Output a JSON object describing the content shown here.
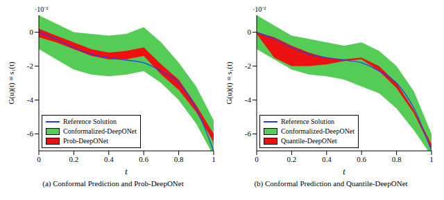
{
  "chart_data": [
    {
      "type": "line",
      "title": "(a) Conformal Prediction and Prob-DeepONet",
      "x_label": "t",
      "y_label": "G(u)(t) ≡ s₁(t)",
      "annotations": [
        "·10⁻²"
      ],
      "x": [
        0,
        0.1,
        0.2,
        0.3,
        0.4,
        0.5,
        0.6,
        0.7,
        0.8,
        0.9,
        1
      ],
      "xlim": [
        0,
        1
      ],
      "xticks": [
        0,
        0.2,
        0.4,
        0.6,
        0.8,
        1
      ],
      "ylim": [
        -7,
        1
      ],
      "yticks": [
        -6,
        -4,
        -2,
        0
      ],
      "legend": "lower left",
      "series": [
        {
          "name": "Reference Solution",
          "type": "line",
          "color": "#1f3cff",
          "values": [
            0,
            -0.4,
            -0.9,
            -1.3,
            -1.5,
            -1.65,
            -1.8,
            -2.3,
            -3.0,
            -4.5,
            -7.0
          ]
        },
        {
          "name": "Conformalized-DeepONet",
          "type": "band",
          "color": "#55cc55",
          "lower": [
            -1.0,
            -1.6,
            -2.2,
            -2.5,
            -2.6,
            -2.5,
            -2.3,
            -3.0,
            -4.0,
            -5.4,
            -7.3
          ],
          "upper": [
            1.0,
            0.5,
            0.0,
            -0.1,
            -0.2,
            -0.1,
            0.3,
            -0.6,
            -1.8,
            -3.2,
            -5.2
          ]
        },
        {
          "name": "Prob-DeepONet",
          "type": "band",
          "color": "#ee1111",
          "lower": [
            -0.3,
            -0.6,
            -1.0,
            -1.4,
            -1.6,
            -1.6,
            -1.4,
            -2.5,
            -3.4,
            -4.7,
            -6.5
          ],
          "upper": [
            0.2,
            -0.2,
            -0.6,
            -1.0,
            -1.2,
            -1.1,
            -0.9,
            -1.9,
            -2.8,
            -4.3,
            -6.0
          ]
        }
      ]
    },
    {
      "type": "line",
      "title": "(b) Conformal Prediction and Quantile-DeepONet",
      "x_label": "t",
      "y_label": "G(u)(t) ≡ s₁(t)",
      "annotations": [
        "·10⁻²"
      ],
      "x": [
        0,
        0.1,
        0.2,
        0.3,
        0.4,
        0.5,
        0.6,
        0.7,
        0.8,
        0.9,
        1
      ],
      "xlim": [
        0,
        1
      ],
      "xticks": [
        0,
        0.2,
        0.4,
        0.6,
        0.8,
        1
      ],
      "ylim": [
        -7,
        1
      ],
      "yticks": [
        -6,
        -4,
        -2,
        0
      ],
      "legend": "lower left",
      "series": [
        {
          "name": "Reference Solution",
          "type": "line",
          "color": "#1f3cff",
          "values": [
            0,
            -0.4,
            -0.9,
            -1.3,
            -1.5,
            -1.65,
            -1.8,
            -2.3,
            -3.0,
            -4.5,
            -7.0
          ]
        },
        {
          "name": "Conformalized-DeepONet",
          "type": "band",
          "color": "#55cc55",
          "lower": [
            -1.0,
            -1.6,
            -2.2,
            -2.5,
            -2.6,
            -2.8,
            -3.2,
            -3.6,
            -4.5,
            -5.8,
            -7.3
          ],
          "upper": [
            1.0,
            0.4,
            -0.2,
            -0.4,
            -0.6,
            -0.8,
            -0.6,
            -1.1,
            -2.0,
            -3.5,
            -6.0
          ]
        },
        {
          "name": "Quantile-DeepONet",
          "type": "band",
          "color": "#ee1111",
          "lower": [
            -0.1,
            -1.5,
            -2.0,
            -2.0,
            -1.9,
            -1.7,
            -1.6,
            -2.3,
            -3.3,
            -4.8,
            -6.9
          ],
          "upper": [
            0.0,
            -0.3,
            -0.8,
            -1.2,
            -1.5,
            -1.6,
            -1.5,
            -2.0,
            -3.0,
            -4.6,
            -6.6
          ]
        }
      ]
    }
  ]
}
